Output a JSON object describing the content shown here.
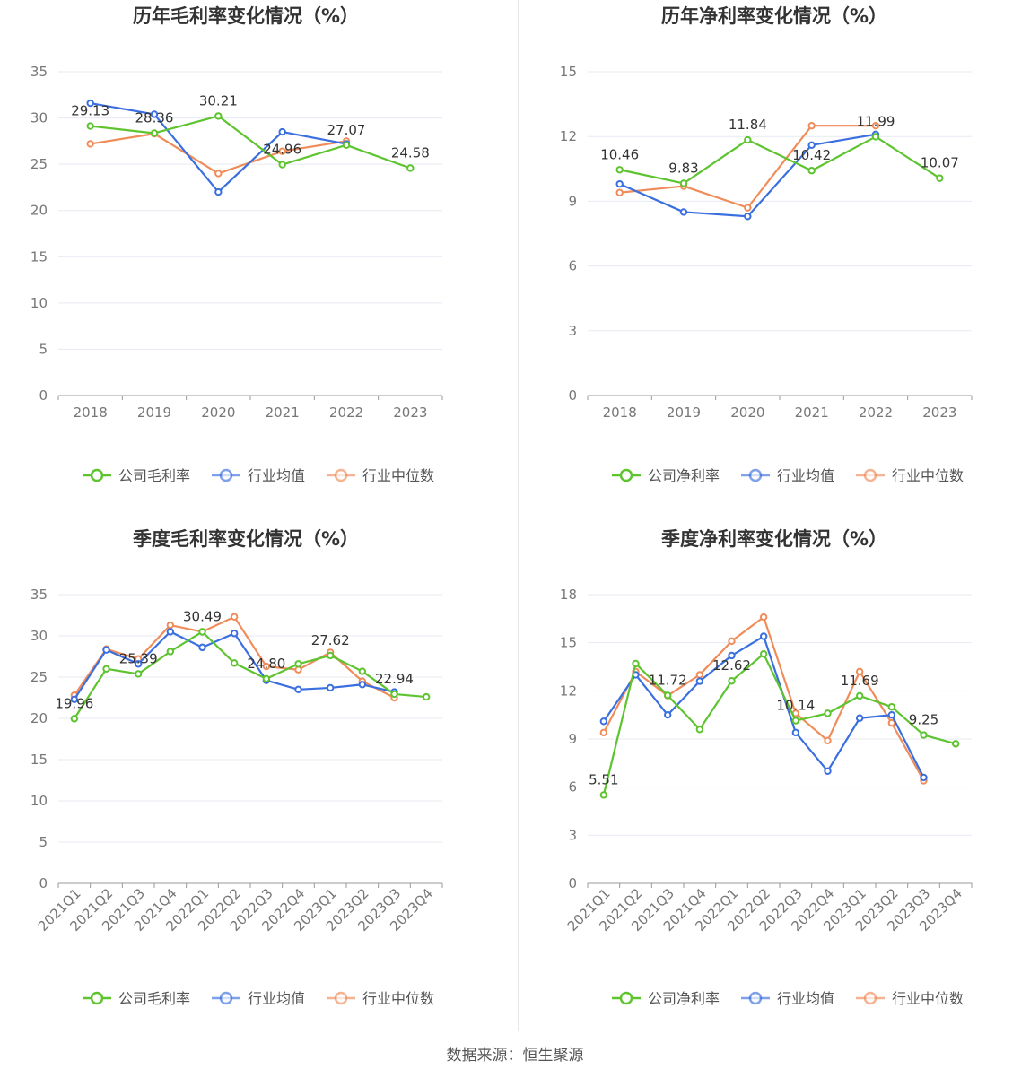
{
  "colors": {
    "company": "#5dc42f",
    "industry_avg": "#3a6fe0",
    "industry_median": "#f08c5a",
    "grid": "#e6e9f2",
    "axis": "#999999"
  },
  "source": "数据来源：恒生聚源",
  "chart_data": [
    {
      "type": "line",
      "title": "历年毛利率变化情况（%）",
      "categories": [
        "2018",
        "2019",
        "2020",
        "2021",
        "2022",
        "2023"
      ],
      "ylim": [
        0,
        35
      ],
      "yticks": [
        0,
        5,
        10,
        15,
        20,
        25,
        30,
        35
      ],
      "rotate_x": false,
      "legend_position": "bottom-center",
      "series": [
        {
          "name": "公司毛利率",
          "key": "company",
          "values": [
            29.13,
            28.36,
            30.21,
            24.96,
            27.07,
            24.58
          ],
          "labels": [
            "29.13",
            "28.36",
            "30.21",
            "24.96",
            "27.07",
            "24.58"
          ]
        },
        {
          "name": "行业均值",
          "key": "industry_avg",
          "values": [
            31.6,
            30.4,
            22.0,
            28.5,
            27.2,
            null
          ]
        },
        {
          "name": "行业中位数",
          "key": "industry_median",
          "values": [
            27.2,
            28.3,
            24.0,
            26.4,
            27.5,
            null
          ]
        }
      ]
    },
    {
      "type": "line",
      "title": "历年净利率变化情况（%）",
      "categories": [
        "2018",
        "2019",
        "2020",
        "2021",
        "2022",
        "2023"
      ],
      "ylim": [
        0,
        15
      ],
      "yticks": [
        0,
        3,
        6,
        9,
        12,
        15
      ],
      "rotate_x": false,
      "legend_position": "bottom-center",
      "series": [
        {
          "name": "公司净利率",
          "key": "company",
          "values": [
            10.46,
            9.83,
            11.84,
            10.42,
            11.99,
            10.07
          ],
          "labels": [
            "10.46",
            "9.83",
            "11.84",
            "10.42",
            "11.99",
            "10.07"
          ]
        },
        {
          "name": "行业均值",
          "key": "industry_avg",
          "values": [
            9.8,
            8.5,
            8.3,
            11.6,
            12.1,
            null
          ]
        },
        {
          "name": "行业中位数",
          "key": "industry_median",
          "values": [
            9.4,
            9.7,
            8.7,
            12.5,
            12.5,
            null
          ]
        }
      ]
    },
    {
      "type": "line",
      "title": "季度毛利率变化情况（%）",
      "categories": [
        "2021Q1",
        "2021Q2",
        "2021Q3",
        "2021Q4",
        "2022Q1",
        "2022Q2",
        "2022Q3",
        "2022Q4",
        "2023Q1",
        "2023Q2",
        "2023Q3",
        "2023Q4"
      ],
      "ylim": [
        0,
        35
      ],
      "yticks": [
        0,
        5,
        10,
        15,
        20,
        25,
        30,
        35
      ],
      "rotate_x": true,
      "legend_position": "bottom-center",
      "series": [
        {
          "name": "公司毛利率",
          "key": "company",
          "values": [
            19.96,
            26.0,
            25.39,
            28.1,
            30.49,
            26.7,
            24.8,
            26.6,
            27.62,
            25.7,
            22.94,
            22.6
          ],
          "labels": [
            "19.96",
            "",
            "25.39",
            "",
            "30.49",
            "",
            "24.80",
            "",
            "27.62",
            "",
            "22.94",
            ""
          ]
        },
        {
          "name": "行业均值",
          "key": "industry_avg",
          "values": [
            22.3,
            28.3,
            26.6,
            30.5,
            28.6,
            30.3,
            24.6,
            23.5,
            23.7,
            24.1,
            23.2,
            null
          ]
        },
        {
          "name": "行业中位数",
          "key": "industry_median",
          "values": [
            22.8,
            28.4,
            27.2,
            31.3,
            30.5,
            32.3,
            26.3,
            25.9,
            28.0,
            24.5,
            22.5,
            null
          ]
        }
      ]
    },
    {
      "type": "line",
      "title": "季度净利率变化情况（%）",
      "categories": [
        "2021Q1",
        "2021Q2",
        "2021Q3",
        "2021Q4",
        "2022Q1",
        "2022Q2",
        "2022Q3",
        "2022Q4",
        "2023Q1",
        "2023Q2",
        "2023Q3",
        "2023Q4"
      ],
      "ylim": [
        0,
        18
      ],
      "yticks": [
        0,
        3,
        6,
        9,
        12,
        15,
        18
      ],
      "rotate_x": true,
      "legend_position": "bottom-center",
      "series": [
        {
          "name": "公司净利率",
          "key": "company",
          "values": [
            5.51,
            13.7,
            11.72,
            9.6,
            12.62,
            14.3,
            10.14,
            10.6,
            11.69,
            11.0,
            9.25,
            8.7
          ],
          "labels": [
            "5.51",
            "",
            "11.72",
            "",
            "12.62",
            "",
            "10.14",
            "",
            "11.69",
            "",
            "9.25",
            ""
          ]
        },
        {
          "name": "行业均值",
          "key": "industry_avg",
          "values": [
            10.1,
            13.0,
            10.5,
            12.6,
            14.2,
            15.4,
            9.4,
            7.0,
            10.3,
            10.5,
            6.6,
            null
          ]
        },
        {
          "name": "行业中位数",
          "key": "industry_median",
          "values": [
            9.4,
            13.2,
            11.7,
            13.0,
            15.1,
            16.6,
            10.6,
            8.9,
            13.2,
            10.0,
            6.4,
            null
          ]
        }
      ]
    }
  ]
}
